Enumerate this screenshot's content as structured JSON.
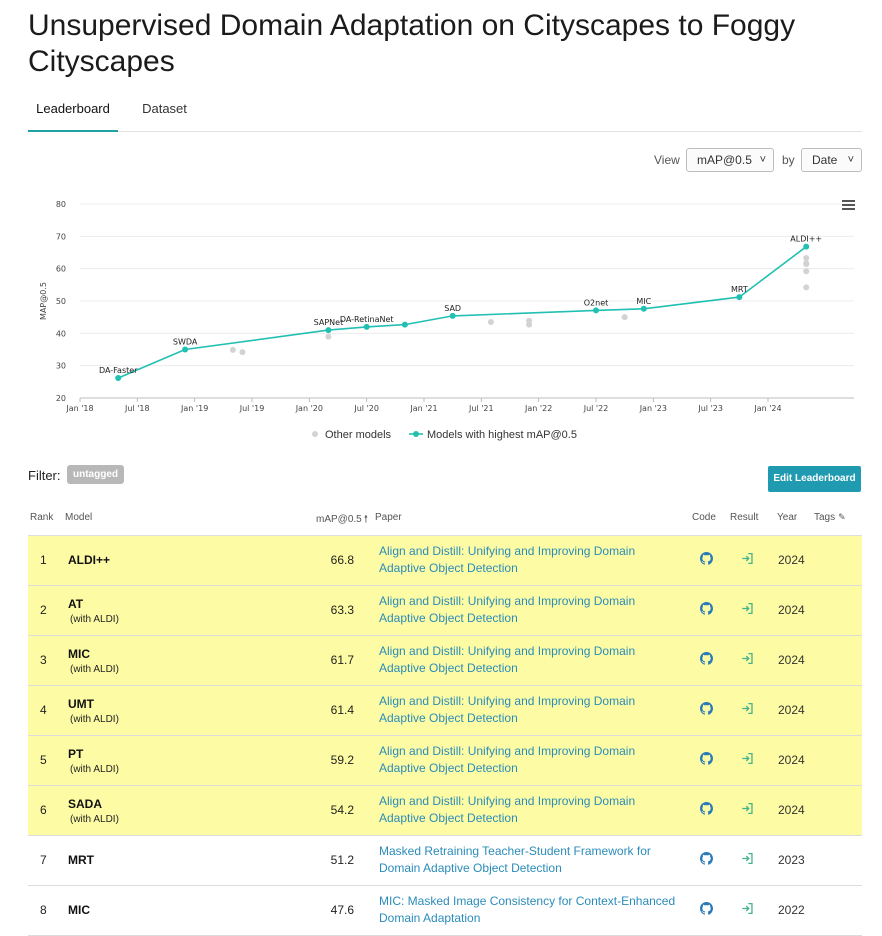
{
  "page": {
    "title": "Unsupervised Domain Adaptation on Cityscapes to Foggy Cityscapes"
  },
  "tabs": [
    {
      "label": "Leaderboard",
      "active": true
    },
    {
      "label": "Dataset",
      "active": false
    }
  ],
  "controls": {
    "view_label": "View",
    "metric_select": "mAP@0.5",
    "by_label": "by",
    "by_select": "Date",
    "menu_icon": "hamburger-menu-icon"
  },
  "chart_data": {
    "type": "scatter",
    "ylabel": "MAP@0.5",
    "ylim": [
      20,
      80
    ],
    "y_ticks": [
      20,
      30,
      40,
      50,
      60,
      70,
      80
    ],
    "x_ticks": [
      "Jan '18",
      "Jul '18",
      "Jan '19",
      "Jul '19",
      "Jan '20",
      "Jul '20",
      "Jan '21",
      "Jul '21",
      "Jan '22",
      "Jul '22",
      "Jan '23",
      "Jul '23",
      "Jan '24"
    ],
    "series": [
      {
        "name": "Models with highest mAP@0.5",
        "color": "#21c0b3",
        "points": [
          {
            "x": "2018-05",
            "y": 26.2,
            "label": "DA-Faster"
          },
          {
            "x": "2018-12",
            "y": 35.0,
            "label": "SWDA"
          },
          {
            "x": "2020-03",
            "y": 41.0,
            "label": "SAPNet"
          },
          {
            "x": "2020-07",
            "y": 42.0,
            "label": "DA-RetinaNet"
          },
          {
            "x": "2020-11",
            "y": 42.7,
            "label": ""
          },
          {
            "x": "2021-04",
            "y": 45.4,
            "label": "SAD"
          },
          {
            "x": "2022-07",
            "y": 47.1,
            "label": "O2net"
          },
          {
            "x": "2022-12",
            "y": 47.6,
            "label": "MIC"
          },
          {
            "x": "2023-10",
            "y": 51.2,
            "label": "MRT"
          },
          {
            "x": "2024-05",
            "y": 66.8,
            "label": "ALDI++"
          }
        ]
      },
      {
        "name": "Other models",
        "color": "#d3d3d3",
        "points": [
          {
            "x": "2019-05",
            "y": 34.9
          },
          {
            "x": "2019-06",
            "y": 34.2
          },
          {
            "x": "2020-03",
            "y": 39.0
          },
          {
            "x": "2021-08",
            "y": 43.5
          },
          {
            "x": "2021-12",
            "y": 43.9
          },
          {
            "x": "2021-12",
            "y": 42.7
          },
          {
            "x": "2022-10",
            "y": 45.0
          },
          {
            "x": "2024-05",
            "y": 63.3
          },
          {
            "x": "2024-05",
            "y": 61.7
          },
          {
            "x": "2024-05",
            "y": 61.4
          },
          {
            "x": "2024-05",
            "y": 59.2
          },
          {
            "x": "2024-05",
            "y": 54.2
          }
        ]
      }
    ],
    "legend": [
      "Other models",
      "Models with highest mAP@0.5"
    ],
    "legend_position": "bottom"
  },
  "filter": {
    "label": "Filter:",
    "tag": "untagged"
  },
  "edit_button": "Edit Leaderboard",
  "table": {
    "headers": {
      "rank": "Rank",
      "model": "Model",
      "metric": "mAP@0.5",
      "paper": "Paper",
      "code": "Code",
      "result": "Result",
      "year": "Year",
      "tags": "Tags"
    },
    "rows": [
      {
        "rank": "1",
        "model": "ALDI++",
        "sub": "",
        "value": "66.8",
        "paper": "Align and Distill: Unifying and Improving Domain Adaptive Object Detection",
        "year": "2024",
        "highlight": true
      },
      {
        "rank": "2",
        "model": "AT",
        "sub": "(with ALDI)",
        "value": "63.3",
        "paper": "Align and Distill: Unifying and Improving Domain Adaptive Object Detection",
        "year": "2024",
        "highlight": true
      },
      {
        "rank": "3",
        "model": "MIC",
        "sub": "(with ALDI)",
        "value": "61.7",
        "paper": "Align and Distill: Unifying and Improving Domain Adaptive Object Detection",
        "year": "2024",
        "highlight": true
      },
      {
        "rank": "4",
        "model": "UMT",
        "sub": "(with ALDI)",
        "value": "61.4",
        "paper": "Align and Distill: Unifying and Improving Domain Adaptive Object Detection",
        "year": "2024",
        "highlight": true
      },
      {
        "rank": "5",
        "model": "PT",
        "sub": "(with ALDI)",
        "value": "59.2",
        "paper": "Align and Distill: Unifying and Improving Domain Adaptive Object Detection",
        "year": "2024",
        "highlight": true
      },
      {
        "rank": "6",
        "model": "SADA",
        "sub": "(with ALDI)",
        "value": "54.2",
        "paper": "Align and Distill: Unifying and Improving Domain Adaptive Object Detection",
        "year": "2024",
        "highlight": true
      },
      {
        "rank": "7",
        "model": "MRT",
        "sub": "",
        "value": "51.2",
        "paper": "Masked Retraining Teacher-Student Framework for Domain Adaptive Object Detection",
        "year": "2023",
        "highlight": false
      },
      {
        "rank": "8",
        "model": "MIC",
        "sub": "",
        "value": "47.6",
        "paper": "MIC: Masked Image Consistency for Context-Enhanced Domain Adaptation",
        "year": "2022",
        "highlight": false
      }
    ]
  },
  "colors": {
    "accent": "#21c0b3",
    "button": "#1f9ab1",
    "link": "#2a8cba",
    "highlight_row": "#fdfca4",
    "code_icon": "#2a7ab8",
    "result_icon": "#45b28c"
  }
}
